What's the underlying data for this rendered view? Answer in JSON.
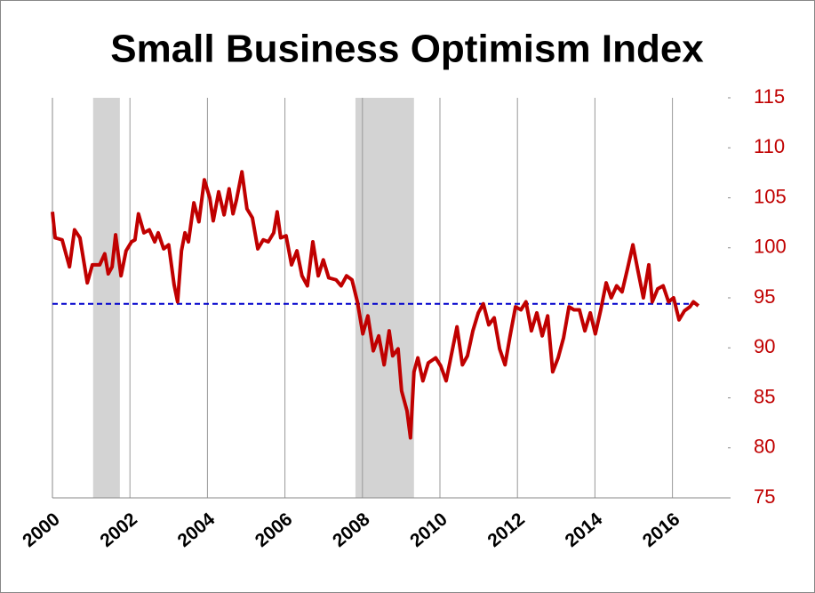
{
  "chart_data": {
    "type": "line",
    "title": "Small Business Optimism Index",
    "x": [
      2000,
      2000.07,
      2000.25,
      2000.44,
      2000.57,
      2000.71,
      2000.9,
      2001.03,
      2001.22,
      2001.35,
      2001.44,
      2001.54,
      2001.63,
      2001.77,
      2001.9,
      2002.04,
      2002.13,
      2002.22,
      2002.36,
      2002.5,
      2002.64,
      2002.73,
      2002.87,
      2003,
      2003.14,
      2003.23,
      2003.33,
      2003.42,
      2003.51,
      2003.65,
      2003.78,
      2003.92,
      2004.06,
      2004.15,
      2004.29,
      2004.43,
      2004.56,
      2004.66,
      2004.75,
      2004.89,
      2005.02,
      2005.16,
      2005.3,
      2005.44,
      2005.57,
      2005.71,
      2005.8,
      2005.89,
      2006.03,
      2006.17,
      2006.31,
      2006.44,
      2006.58,
      2006.72,
      2006.86,
      2006.99,
      2007.13,
      2007.32,
      2007.45,
      2007.59,
      2007.73,
      2007.87,
      2008.01,
      2008.14,
      2008.28,
      2008.42,
      2008.56,
      2008.69,
      2008.78,
      2008.92,
      2009.01,
      2009.15,
      2009.24,
      2009.33,
      2009.43,
      2009.56,
      2009.7,
      2009.89,
      2010.02,
      2010.16,
      2010.3,
      2010.44,
      2010.58,
      2010.71,
      2010.85,
      2010.99,
      2011.12,
      2011.26,
      2011.4,
      2011.54,
      2011.68,
      2011.81,
      2011.95,
      2012.09,
      2012.22,
      2012.36,
      2012.5,
      2012.64,
      2012.78,
      2012.91,
      2013.05,
      2013.19,
      2013.33,
      2013.46,
      2013.6,
      2013.74,
      2013.88,
      2014.01,
      2014.15,
      2014.29,
      2014.42,
      2014.56,
      2014.7,
      2014.84,
      2014.98,
      2015.11,
      2015.25,
      2015.39,
      2015.48,
      2015.62,
      2015.76,
      2015.9,
      2016.03,
      2016.17,
      2016.31,
      2016.45,
      2016.54,
      2016.67
    ],
    "series": [
      {
        "color": "#c00000",
        "values": [
          103.6,
          101,
          100.8,
          98.1,
          101.8,
          101,
          96.5,
          98.3,
          98.3,
          99.4,
          97.4,
          98.1,
          101.3,
          97.2,
          99.7,
          100.6,
          100.8,
          103.4,
          101.5,
          101.8,
          100.6,
          101.5,
          99.9,
          100.3,
          96.3,
          94.6,
          99.7,
          101.5,
          100.6,
          104.5,
          102.6,
          106.8,
          105,
          102.7,
          105.6,
          103.3,
          105.9,
          103.4,
          104.8,
          107.6,
          103.9,
          103,
          99.9,
          100.8,
          100.6,
          101.5,
          103.6,
          101,
          101.2,
          98.3,
          99.7,
          97.2,
          96.2,
          100.6,
          97.2,
          98.8,
          97,
          96.8,
          96.2,
          97.2,
          96.8,
          94.6,
          91.4,
          93.2,
          89.7,
          91.2,
          88.3,
          91.7,
          89.2,
          89.9,
          85.7,
          83.7,
          81,
          87.6,
          89,
          86.7,
          88.5,
          89,
          88.2,
          86.7,
          89.4,
          92.1,
          88.3,
          89.2,
          91.7,
          93.5,
          94.4,
          92.3,
          93,
          89.9,
          88.3,
          91.2,
          94.1,
          93.8,
          94.6,
          91.7,
          93.5,
          91.2,
          93.2,
          87.6,
          89,
          91,
          94.1,
          93.8,
          93.8,
          91.7,
          93.5,
          91.4,
          93.8,
          96.5,
          95,
          96.2,
          95.6,
          97.9,
          100.3,
          97.7,
          95,
          98.3,
          94.6,
          95.9,
          96.2,
          94.6,
          95,
          92.8,
          93.7,
          94.1,
          94.6,
          94.2
        ]
      }
    ],
    "reference_line": {
      "value": 94.4,
      "color": "#0000cc"
    },
    "recessions": [
      [
        2001.05,
        2001.74
      ],
      [
        2007.82,
        2009.33
      ]
    ],
    "xlim": [
      2000,
      2017.5
    ],
    "xticks": [
      2000,
      2002,
      2004,
      2006,
      2008,
      2010,
      2012,
      2014,
      2016
    ],
    "ylim": [
      75,
      115
    ],
    "yticks": [
      75,
      80,
      85,
      90,
      95,
      100,
      105,
      110,
      115
    ],
    "y_axis_side": "right",
    "tick_color": "#c00000",
    "grid": "x"
  }
}
